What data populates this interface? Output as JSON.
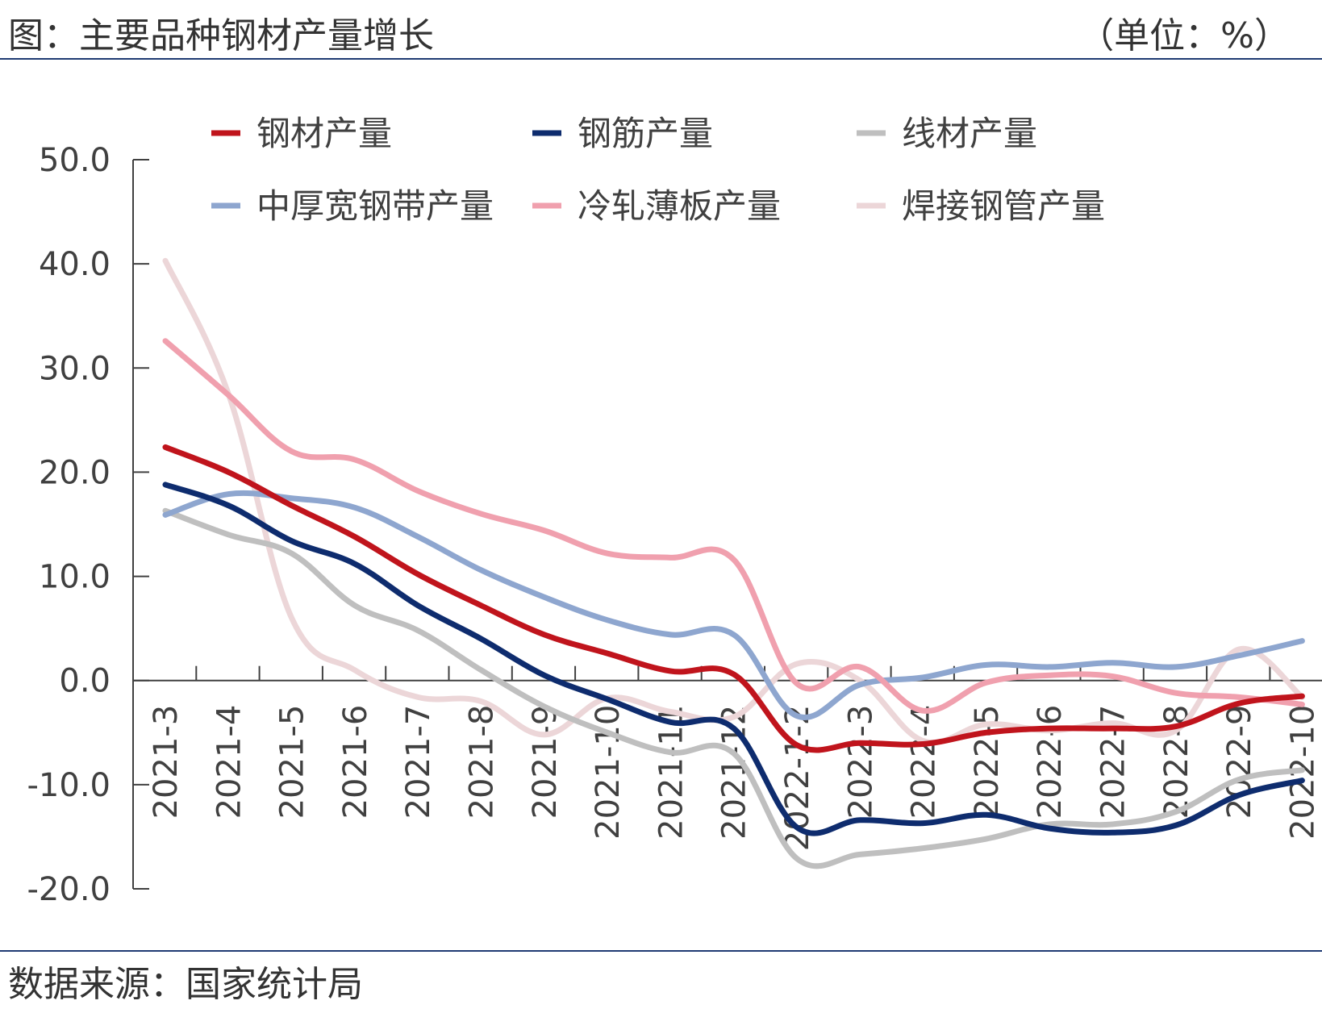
{
  "header": {
    "title": "图：主要品种钢材产量增长",
    "unit": "（单位：%）"
  },
  "footer": {
    "source": "数据来源：国家统计局"
  },
  "chart_data": {
    "type": "line",
    "ylim": [
      -20,
      50
    ],
    "yticks": [
      50,
      40,
      30,
      20,
      10,
      0,
      -10,
      -20
    ],
    "ytick_labels": [
      "50.0",
      "40.0",
      "30.0",
      "20.0",
      "10.0",
      "0.0",
      "-10.0",
      "-20.0"
    ],
    "categories": [
      "2021-3",
      "2021-4",
      "2021-5",
      "2021-6",
      "2021-7",
      "2021-8",
      "2021-9",
      "2021-10",
      "2021-11",
      "2021-12",
      "2022-1-2",
      "2022-3",
      "2022-4",
      "2022-5",
      "2022-6",
      "2022-7",
      "2022-8",
      "2022-9",
      "2022-10"
    ],
    "legend_position": "top",
    "grid": false,
    "series": [
      {
        "name": "钢材产量",
        "color": "#c0141c",
        "values": [
          22.4,
          20.0,
          16.8,
          13.8,
          10.2,
          7.2,
          4.4,
          2.6,
          0.9,
          0.6,
          -6.2,
          -6.0,
          -6.1,
          -5.0,
          -4.6,
          -4.6,
          -4.4,
          -2.2,
          -1.5
        ]
      },
      {
        "name": "钢筋产量",
        "color": "#0e2c6e",
        "values": [
          18.8,
          16.8,
          13.4,
          11.2,
          7.2,
          4.0,
          0.5,
          -1.8,
          -4.0,
          -4.6,
          -14.1,
          -13.4,
          -13.7,
          -12.9,
          -14.2,
          -14.6,
          -13.9,
          -11.0,
          -9.6
        ]
      },
      {
        "name": "线材产量",
        "color": "#bfbfbf",
        "values": [
          16.3,
          14.0,
          12.2,
          7.2,
          4.8,
          1.0,
          -2.5,
          -5.0,
          -6.9,
          -7.0,
          -17.1,
          -16.7,
          -16.1,
          -15.2,
          -13.8,
          -13.8,
          -12.6,
          -9.5,
          -8.6
        ]
      },
      {
        "name": "中厚宽钢带产量",
        "color": "#8ea6cf",
        "values": [
          15.9,
          17.9,
          17.5,
          16.6,
          13.8,
          10.6,
          8.0,
          5.8,
          4.4,
          4.4,
          -3.4,
          -0.4,
          0.3,
          1.5,
          1.3,
          1.7,
          1.3,
          2.4,
          3.8
        ]
      },
      {
        "name": "冷轧薄板产量",
        "color": "#f0a0ae",
        "values": [
          32.6,
          27.4,
          22.0,
          21.2,
          18.2,
          16.0,
          14.4,
          12.2,
          11.8,
          11.6,
          -0.3,
          1.3,
          -2.9,
          -0.2,
          0.5,
          0.4,
          -1.2,
          -1.6,
          -2.3
        ]
      },
      {
        "name": "焊接钢管产量",
        "color": "#ecd6d8",
        "values": [
          40.3,
          27.5,
          6.0,
          1.0,
          -1.6,
          -2.0,
          -5.2,
          -1.7,
          -3.0,
          -3.5,
          1.6,
          0.0,
          -5.8,
          -4.2,
          -4.8,
          -4.1,
          -4.8,
          3.0,
          -1.6
        ]
      }
    ]
  }
}
